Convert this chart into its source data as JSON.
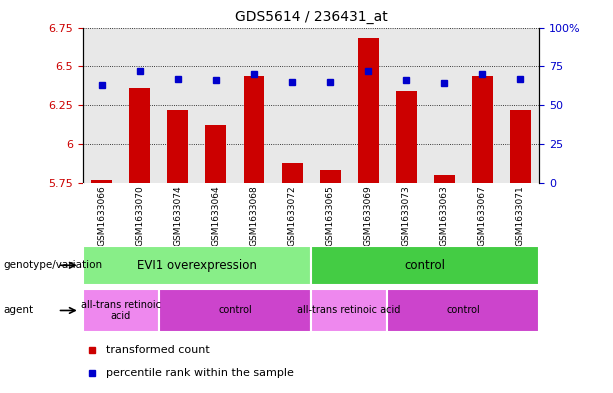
{
  "title": "GDS5614 / 236431_at",
  "samples": [
    "GSM1633066",
    "GSM1633070",
    "GSM1633074",
    "GSM1633064",
    "GSM1633068",
    "GSM1633072",
    "GSM1633065",
    "GSM1633069",
    "GSM1633073",
    "GSM1633063",
    "GSM1633067",
    "GSM1633071"
  ],
  "transformed_count": [
    5.77,
    6.36,
    6.22,
    6.12,
    6.44,
    5.88,
    5.83,
    6.68,
    6.34,
    5.8,
    6.44,
    6.22
  ],
  "percentile_rank": [
    63,
    72,
    67,
    66,
    70,
    65,
    65,
    72,
    66,
    64,
    70,
    67
  ],
  "ylim_left": [
    5.75,
    6.75
  ],
  "ylim_right": [
    0,
    100
  ],
  "yticks_left": [
    5.75,
    6.0,
    6.25,
    6.5,
    6.75
  ],
  "yticks_right": [
    0,
    25,
    50,
    75,
    100
  ],
  "ytick_labels_left": [
    "5.75",
    "6",
    "6.25",
    "6.5",
    "6.75"
  ],
  "ytick_labels_right": [
    "0",
    "25",
    "50",
    "75",
    "100%"
  ],
  "bar_color": "#cc0000",
  "dot_color": "#0000cc",
  "plot_bg_color": "#e8e8e8",
  "xtick_bg_color": "#c8c8c8",
  "genotype_groups": [
    {
      "label": "EVI1 overexpression",
      "start": 0,
      "end": 5,
      "color": "#88ee88"
    },
    {
      "label": "control",
      "start": 6,
      "end": 11,
      "color": "#44cc44"
    }
  ],
  "agent_groups": [
    {
      "label": "all-trans retinoic\nacid",
      "start": 0,
      "end": 1,
      "color": "#ee88ee"
    },
    {
      "label": "control",
      "start": 2,
      "end": 5,
      "color": "#cc44cc"
    },
    {
      "label": "all-trans retinoic acid",
      "start": 6,
      "end": 7,
      "color": "#ee88ee"
    },
    {
      "label": "control",
      "start": 8,
      "end": 11,
      "color": "#cc44cc"
    }
  ],
  "legend_items": [
    {
      "label": "transformed count",
      "color": "#cc0000"
    },
    {
      "label": "percentile rank within the sample",
      "color": "#0000cc"
    }
  ],
  "row_labels": [
    "genotype/variation",
    "agent"
  ]
}
